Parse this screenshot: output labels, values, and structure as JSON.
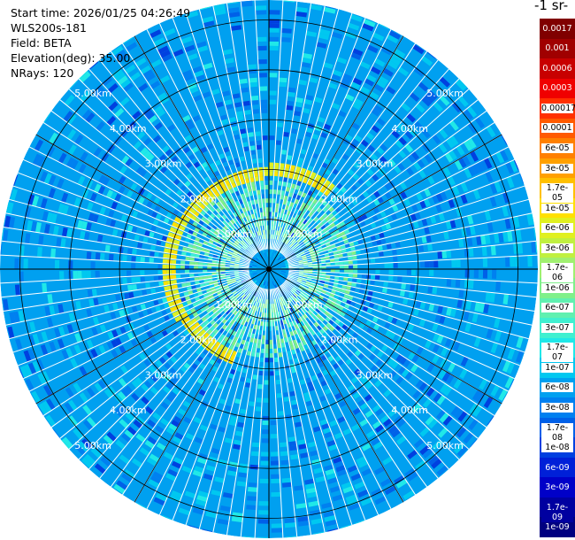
{
  "header": {
    "lines": [
      "Start time: 2026/01/25 04:26:49",
      "WLS200s-181",
      "Field: BETA",
      "Elevation(deg): 35.00",
      "NRays: 120"
    ]
  },
  "colorbar": {
    "title": "-1 sr-",
    "labels": [
      "0.0017",
      "0.001",
      "0.0006",
      "0.0003",
      "0.00017",
      "0.0001",
      "6e-05",
      "3e-05",
      "1.7e-05",
      "1e-05",
      "6e-06",
      "3e-06",
      "1.7e-06",
      "1e-06",
      "6e-07",
      "3e-07",
      "1.7e-07",
      "1e-07",
      "6e-08",
      "3e-08",
      "1.7e-08",
      "1e-08",
      "6e-09",
      "3e-09",
      "1.7e-09",
      "1e-09"
    ],
    "colors": [
      "#800000",
      "#a00000",
      "#c80000",
      "#f00000",
      "#ff3000",
      "#ff5a00",
      "#ff8000",
      "#ffa000",
      "#ffc000",
      "#ffe000",
      "#e0f020",
      "#c0f040",
      "#a0f070",
      "#7ff08a",
      "#60f0b0",
      "#40f0d0",
      "#20e8e8",
      "#00c8f0",
      "#00a0f0",
      "#0080f0",
      "#0060e8",
      "#0040e0",
      "#0020d8",
      "#0000c8",
      "#0000a0",
      "#000080"
    ]
  },
  "chart_data": {
    "type": "heatmap",
    "title": "",
    "field": "BETA",
    "elevation_deg": 35.0,
    "n_rays": 120,
    "range_unit": "km",
    "range_rings_km": [
      1,
      2,
      3,
      4,
      5
    ],
    "range_labels": [
      "1.00km",
      "2.00km",
      "3.00km",
      "4.00km",
      "5.00km"
    ],
    "max_range_km": 5.4,
    "background_class": "6e-08",
    "features": [
      {
        "description_value_range": [
          "3e-06",
          "1.7e-05"
        ],
        "range_km": [
          1.75,
          2.1
        ],
        "azimuth_deg": [
          200,
          360
        ]
      },
      {
        "description_value_range": [
          "1.7e-07",
          "6e-07"
        ],
        "range_km": [
          0.6,
          1.7
        ],
        "azimuth_deg": [
          0,
          360
        ]
      }
    ]
  }
}
